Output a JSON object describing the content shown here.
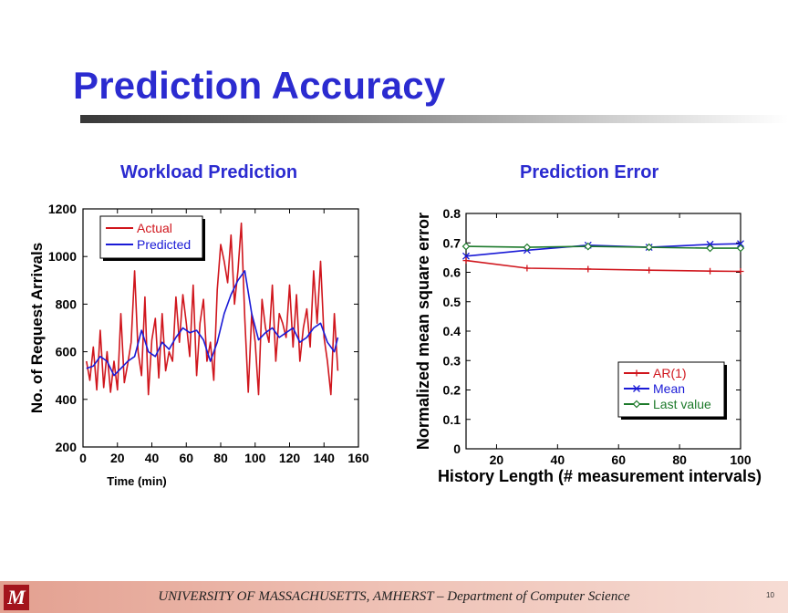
{
  "slide": {
    "title": "Prediction Accuracy",
    "page_number": "10",
    "footer": "UNIVERSITY OF MASSACHUSETTS, AMHERST – Department of Computer Science",
    "logo_text": "UMASS"
  },
  "colors": {
    "title": "#2b2bd0",
    "actual": "#d0161d",
    "predicted": "#1a1ad6",
    "ar1": "#d0161d",
    "mean": "#1a1ad6",
    "last_value": "#1d7a2b"
  },
  "chart_data": [
    {
      "type": "line",
      "title": "Workload Prediction",
      "xlabel": "Time (min)",
      "ylabel": "No. of Request Arrivals",
      "xlim": [
        0,
        160
      ],
      "ylim": [
        200,
        1200
      ],
      "xticks": [
        0,
        20,
        40,
        60,
        80,
        100,
        120,
        140,
        160
      ],
      "yticks": [
        200,
        400,
        600,
        800,
        1000,
        1200
      ],
      "grid": false,
      "legend_position": "top-left",
      "series": [
        {
          "name": "Actual",
          "color": "#d0161d",
          "x": [
            2,
            4,
            6,
            8,
            10,
            12,
            14,
            16,
            18,
            20,
            22,
            24,
            26,
            28,
            30,
            32,
            34,
            36,
            38,
            40,
            42,
            44,
            46,
            48,
            50,
            52,
            54,
            56,
            58,
            60,
            62,
            64,
            66,
            68,
            70,
            72,
            74,
            76,
            78,
            80,
            82,
            84,
            86,
            88,
            90,
            92,
            94,
            96,
            98,
            100,
            102,
            104,
            106,
            108,
            110,
            112,
            114,
            116,
            118,
            120,
            122,
            124,
            126,
            128,
            130,
            132,
            134,
            136,
            138,
            140,
            142,
            144,
            146,
            148
          ],
          "y": [
            560,
            480,
            620,
            440,
            690,
            450,
            600,
            430,
            560,
            440,
            760,
            470,
            550,
            640,
            940,
            600,
            500,
            830,
            420,
            650,
            740,
            490,
            760,
            520,
            600,
            560,
            830,
            640,
            840,
            720,
            580,
            880,
            500,
            720,
            820,
            560,
            640,
            480,
            860,
            1050,
            980,
            890,
            1090,
            800,
            940,
            1140,
            740,
            430,
            760,
            640,
            420,
            820,
            700,
            640,
            880,
            560,
            760,
            720,
            660,
            880,
            620,
            840,
            560,
            700,
            780,
            620,
            940,
            720,
            980,
            660,
            560,
            420,
            760,
            520
          ]
        },
        {
          "name": "Predicted",
          "color": "#1a1ad6",
          "x": [
            2,
            6,
            10,
            14,
            18,
            22,
            26,
            30,
            34,
            38,
            42,
            46,
            50,
            54,
            58,
            62,
            66,
            70,
            74,
            78,
            82,
            86,
            90,
            94,
            98,
            102,
            106,
            110,
            114,
            118,
            122,
            126,
            130,
            134,
            138,
            142,
            146,
            148
          ],
          "y": [
            530,
            540,
            580,
            560,
            500,
            530,
            560,
            580,
            690,
            600,
            580,
            640,
            610,
            660,
            700,
            680,
            690,
            650,
            560,
            640,
            760,
            840,
            900,
            940,
            760,
            650,
            680,
            700,
            660,
            680,
            700,
            640,
            660,
            700,
            720,
            640,
            600,
            660
          ]
        }
      ]
    },
    {
      "type": "line",
      "title": "Prediction Error",
      "xlabel": "History Length (# measurement intervals)",
      "ylabel": "Normalized mean square error",
      "xlim": [
        10,
        100
      ],
      "ylim": [
        0,
        0.8
      ],
      "xticks": [
        20,
        40,
        60,
        80,
        100
      ],
      "yticks": [
        0,
        0.1,
        0.2,
        0.3,
        0.4,
        0.5,
        0.6,
        0.7,
        0.8
      ],
      "grid": false,
      "legend_position": "bottom-right",
      "series": [
        {
          "name": "AR(1)",
          "color": "#d0161d",
          "marker": "+",
          "x": [
            10,
            30,
            50,
            70,
            90,
            100
          ],
          "y": [
            0.64,
            0.614,
            0.611,
            0.607,
            0.604,
            0.603
          ]
        },
        {
          "name": "Mean",
          "color": "#1a1ad6",
          "marker": "x",
          "x": [
            10,
            30,
            50,
            70,
            90,
            100
          ],
          "y": [
            0.655,
            0.675,
            0.692,
            0.685,
            0.695,
            0.697
          ]
        },
        {
          "name": "Last value",
          "color": "#1d7a2b",
          "marker": "diamond",
          "x": [
            10,
            30,
            50,
            70,
            90,
            100
          ],
          "y": [
            0.688,
            0.685,
            0.688,
            0.685,
            0.682,
            0.682
          ]
        }
      ]
    }
  ]
}
